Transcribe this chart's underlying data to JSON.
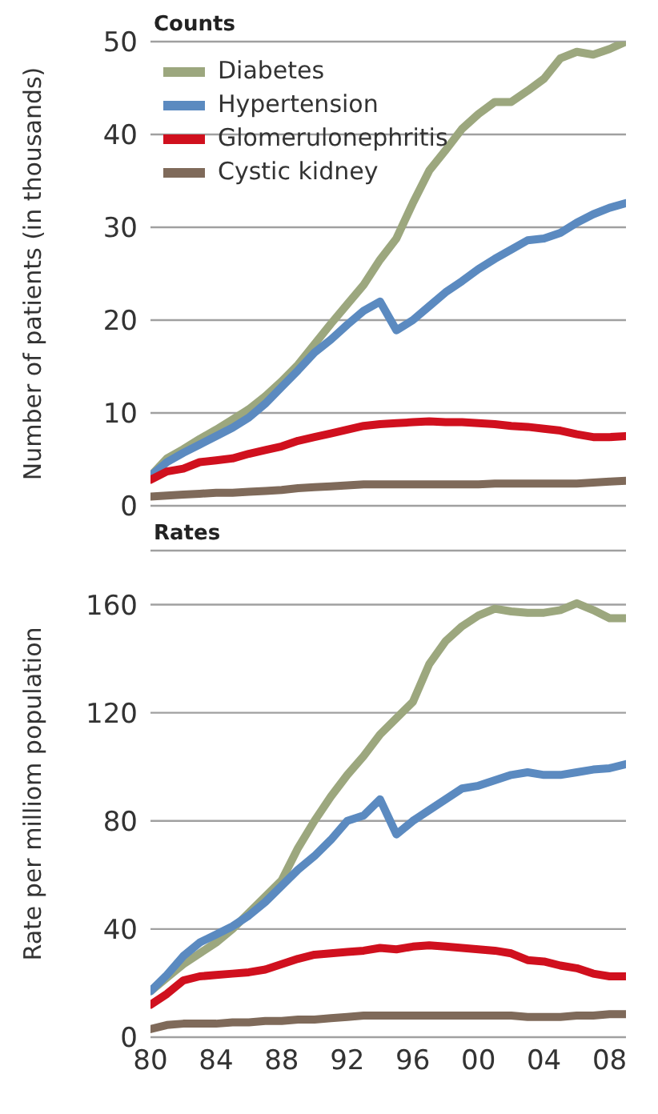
{
  "chart_data": [
    {
      "type": "line",
      "title": "Counts",
      "ylabel": "Number of patients (in thousands)",
      "x": [
        1980,
        1981,
        1982,
        1983,
        1984,
        1985,
        1986,
        1987,
        1988,
        1989,
        1990,
        1991,
        1992,
        1993,
        1994,
        1995,
        1996,
        1997,
        1998,
        1999,
        2000,
        2001,
        2002,
        2003,
        2004,
        2005,
        2006,
        2007,
        2008,
        2009
      ],
      "xlim": [
        1980,
        2009
      ],
      "ylim": [
        0,
        50
      ],
      "yticks": [
        0,
        10,
        20,
        30,
        40,
        50
      ],
      "grid": "y",
      "legend": "top left",
      "tick_labels": "y",
      "marker": "none",
      "line_style": "solid",
      "series": [
        {
          "name": "Diabetes",
          "color": "#9ca77e",
          "values": [
            3.2,
            5.1,
            6.1,
            7.2,
            8.2,
            9.3,
            10.4,
            11.8,
            13.4,
            15.2,
            17.4,
            19.6,
            21.7,
            23.8,
            26.5,
            28.8,
            32.6,
            36.1,
            38.3,
            40.6,
            42.2,
            43.5,
            43.5,
            44.7,
            46,
            48.2,
            48.9,
            48.6,
            49.2,
            50
          ]
        },
        {
          "name": "Hypertension",
          "color": "#5b8ac0",
          "values": [
            3.2,
            4.7,
            5.7,
            6.6,
            7.5,
            8.4,
            9.5,
            11,
            12.8,
            14.6,
            16.5,
            17.9,
            19.5,
            21,
            22,
            18.9,
            20,
            21.5,
            23,
            24.2,
            25.5,
            26.6,
            27.6,
            28.6,
            28.8,
            29.4,
            30.5,
            31.4,
            32.1,
            32.6
          ]
        },
        {
          "name": "Glomerulonephritis",
          "color": "#d0101e",
          "values": [
            2.8,
            3.7,
            4,
            4.7,
            4.9,
            5.1,
            5.6,
            6,
            6.4,
            7,
            7.4,
            7.8,
            8.2,
            8.6,
            8.8,
            8.9,
            9,
            9.1,
            9,
            9,
            8.9,
            8.8,
            8.6,
            8.5,
            8.3,
            8.1,
            7.7,
            7.4,
            7.4,
            7.5
          ]
        },
        {
          "name": "Cystic kidney",
          "color": "#7f6a5a",
          "values": [
            1,
            1.1,
            1.2,
            1.3,
            1.4,
            1.4,
            1.5,
            1.6,
            1.7,
            1.9,
            2,
            2.1,
            2.2,
            2.3,
            2.3,
            2.3,
            2.3,
            2.3,
            2.3,
            2.3,
            2.3,
            2.4,
            2.4,
            2.4,
            2.4,
            2.4,
            2.4,
            2.5,
            2.6,
            2.7
          ]
        }
      ]
    },
    {
      "type": "line",
      "title": "Rates",
      "ylabel": "Rate per milliom population",
      "x": [
        1980,
        1981,
        1982,
        1983,
        1984,
        1985,
        1986,
        1987,
        1988,
        1989,
        1990,
        1991,
        1992,
        1993,
        1994,
        1995,
        1996,
        1997,
        1998,
        1999,
        2000,
        2001,
        2002,
        2003,
        2004,
        2005,
        2006,
        2007,
        2008,
        2009
      ],
      "xlim": [
        1980,
        2009
      ],
      "xticks": [
        {
          "value": 1980,
          "label": "80"
        },
        {
          "value": 1984,
          "label": "84"
        },
        {
          "value": 1988,
          "label": "88"
        },
        {
          "value": 1992,
          "label": "92"
        },
        {
          "value": 1996,
          "label": "96"
        },
        {
          "value": 2000,
          "label": "00"
        },
        {
          "value": 2004,
          "label": "04"
        },
        {
          "value": 2008,
          "label": "08"
        }
      ],
      "ylim": [
        0,
        180
      ],
      "yticks": [
        0,
        40,
        80,
        120,
        160,
        {
          "value": 180,
          "label": null
        }
      ],
      "grid": "y",
      "marker": "none",
      "line_style": "solid",
      "series": [
        {
          "color": "#9ca77e",
          "values": [
            17,
            22,
            27,
            31,
            35,
            40,
            46,
            52,
            58,
            70,
            80,
            89,
            97,
            104,
            112,
            118,
            124,
            138,
            146.5,
            152,
            156,
            158.5,
            157.5,
            157,
            157,
            158,
            160.5,
            158,
            155,
            155
          ]
        },
        {
          "color": "#5b8ac0",
          "values": [
            17,
            23,
            30,
            35,
            38,
            41,
            45,
            50,
            56,
            62,
            67,
            73,
            80,
            82,
            88,
            75,
            80,
            84,
            88,
            92,
            93,
            95,
            97,
            98,
            97,
            97,
            98,
            99,
            99.5,
            101
          ]
        },
        {
          "color": "#d0101e",
          "values": [
            12,
            16,
            21,
            22.5,
            23,
            23.5,
            24,
            25,
            27,
            29,
            30.5,
            31,
            31.5,
            32,
            33,
            32.5,
            33.5,
            34,
            33.5,
            33,
            32.5,
            32,
            31,
            28.5,
            28,
            26.5,
            25.5,
            23.5,
            22.5,
            22.5
          ]
        },
        {
          "color": "#7f6a5a",
          "values": [
            3,
            4.5,
            5,
            5,
            5,
            5.5,
            5.5,
            6,
            6,
            6.5,
            6.5,
            7,
            7.5,
            8,
            8,
            8,
            8,
            8,
            8,
            8,
            8,
            8,
            8,
            7.5,
            7.5,
            7.5,
            8,
            8,
            8.5,
            8.5
          ]
        }
      ]
    }
  ]
}
